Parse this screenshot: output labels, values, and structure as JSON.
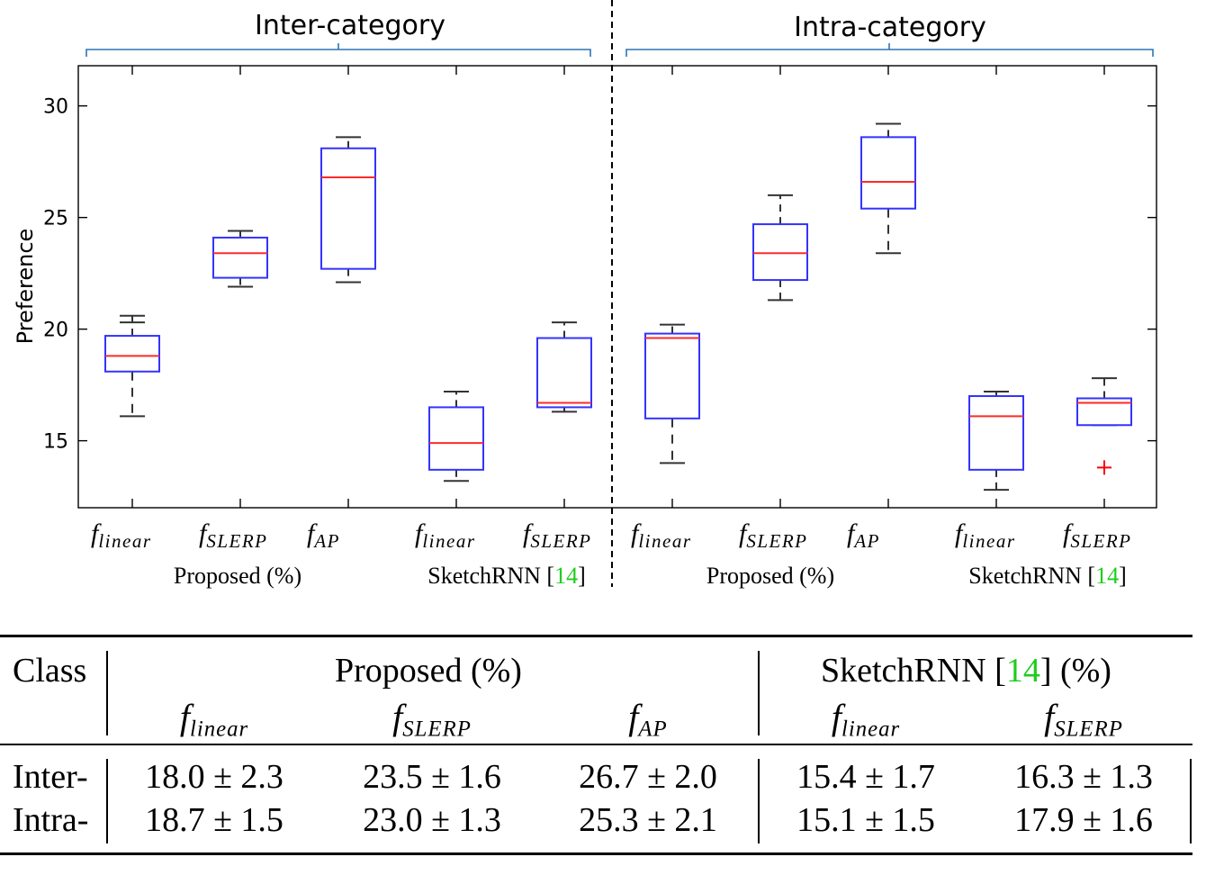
{
  "chart_data": {
    "type": "box",
    "ylabel": "Preference",
    "ylim": [
      12,
      31.8
    ],
    "yticks": [
      15,
      20,
      25,
      30
    ],
    "panels": [
      {
        "title": "Inter-category",
        "groups": [
          {
            "label": "Proposed (%)",
            "citation": ""
          },
          {
            "label": "SketchRNN [",
            "citation": "14",
            "suffix": "]"
          }
        ],
        "boxes": [
          {
            "func": "f",
            "sub": "linear",
            "group": 0,
            "whisker_low": 16.1,
            "q1": 18.1,
            "median": 18.8,
            "q3": 19.7,
            "whisker_high": 20.3,
            "whisker_low_dashed": true,
            "cap_high": 20.6
          },
          {
            "func": "f",
            "sub": "SLERP",
            "group": 0,
            "whisker_low": 21.9,
            "q1": 22.3,
            "median": 23.4,
            "q3": 24.1,
            "whisker_high": 24.4
          },
          {
            "func": "f",
            "sub": "AP",
            "group": 0,
            "whisker_low": 22.1,
            "q1": 22.7,
            "median": 26.8,
            "q3": 28.1,
            "whisker_high": 28.6
          },
          {
            "func": "f",
            "sub": "linear",
            "group": 1,
            "whisker_low": 13.2,
            "q1": 13.7,
            "median": 14.9,
            "q3": 16.5,
            "whisker_high": 17.2
          },
          {
            "func": "f",
            "sub": "SLERP",
            "group": 1,
            "whisker_low": 16.3,
            "q1": 16.5,
            "median": 16.7,
            "q3": 19.6,
            "whisker_high": 20.3
          }
        ]
      },
      {
        "title": "Intra-category",
        "groups": [
          {
            "label": "Proposed (%)",
            "citation": ""
          },
          {
            "label": "SketchRNN [",
            "citation": "14",
            "suffix": "]"
          }
        ],
        "boxes": [
          {
            "func": "f",
            "sub": "linear",
            "group": 0,
            "whisker_low": 14.0,
            "q1": 16.0,
            "median": 19.6,
            "q3": 19.8,
            "whisker_high": 20.2,
            "whisker_low_dashed": true
          },
          {
            "func": "f",
            "sub": "SLERP",
            "group": 0,
            "whisker_low": 21.3,
            "q1": 22.2,
            "median": 23.4,
            "q3": 24.7,
            "whisker_high": 26.0
          },
          {
            "func": "f",
            "sub": "AP",
            "group": 0,
            "whisker_low": 23.4,
            "q1": 25.4,
            "median": 26.6,
            "q3": 28.6,
            "whisker_high": 29.2,
            "whisker_low_dashed": true
          },
          {
            "func": "f",
            "sub": "linear",
            "group": 1,
            "whisker_low": 12.8,
            "q1": 13.7,
            "median": 16.1,
            "q3": 17.0,
            "whisker_high": 17.2
          },
          {
            "func": "f",
            "sub": "SLERP",
            "group": 1,
            "whisker_low": 15.7,
            "q1": 15.7,
            "median": 16.7,
            "q3": 16.9,
            "whisker_high": 17.8,
            "outliers": [
              13.8
            ]
          }
        ]
      }
    ],
    "colors": {
      "box": "#3333ff",
      "median": "#ff2a2a",
      "whisker": "#333333",
      "outlier": "#ff0000",
      "citation": "#1fcc1f"
    }
  },
  "table": {
    "class_header": "Class",
    "proposed_header": "Proposed (%)",
    "sketchrnn_header_prefix": "SketchRNN [",
    "sketchrnn_citation": "14",
    "sketchrnn_header_suffix": "] (%)",
    "columns": [
      {
        "func": "f",
        "sub": "linear"
      },
      {
        "func": "f",
        "sub": "SLERP"
      },
      {
        "func": "f",
        "sub": "AP"
      },
      {
        "func": "f",
        "sub": "linear"
      },
      {
        "func": "f",
        "sub": "SLERP"
      }
    ],
    "rows": [
      {
        "label": "Inter-",
        "values": [
          "18.0 ± 2.3",
          "23.5 ± 1.6",
          "26.7 ± 2.0",
          "15.4 ± 1.7",
          "16.3 ± 1.3"
        ]
      },
      {
        "label": "Intra-",
        "values": [
          "18.7 ± 1.5",
          "23.0 ± 1.3",
          "25.3 ± 2.1",
          "15.1 ± 1.5",
          "17.9 ± 1.6"
        ]
      }
    ]
  }
}
